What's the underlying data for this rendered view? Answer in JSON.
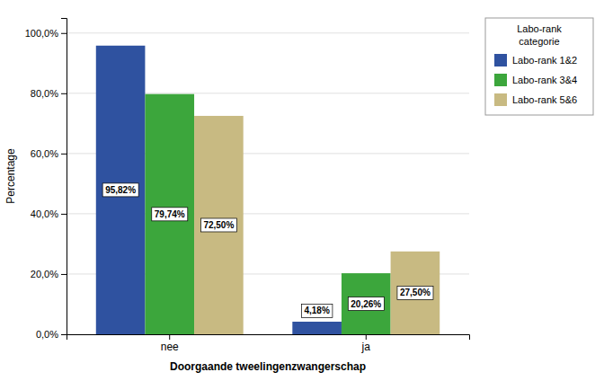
{
  "chart_data": {
    "type": "bar",
    "categories": [
      "nee",
      "ja"
    ],
    "series": [
      {
        "name": "Labo-rank 1&2",
        "color": "#2F52A0",
        "values": [
          95.82,
          4.18
        ],
        "value_labels": [
          "95,82%",
          "4,18%"
        ]
      },
      {
        "name": "Labo-rank 3&4",
        "color": "#3CA63C",
        "values": [
          79.74,
          20.26
        ],
        "value_labels": [
          "79,74%",
          "20,26%"
        ]
      },
      {
        "name": "Labo-rank 5&6",
        "color": "#C8BA82",
        "values": [
          72.5,
          27.5
        ],
        "value_labels": [
          "72,50%",
          "27,50%"
        ]
      }
    ],
    "xlabel": "Doorgaande tweelingenzwangerschap",
    "ylabel": "Percentage",
    "legend_title": "Labo-rank\ncategorie",
    "ylim": [
      0,
      105
    ],
    "yticks": [
      {
        "value": 0,
        "label": "0,0%"
      },
      {
        "value": 20,
        "label": "20,0%"
      },
      {
        "value": 40,
        "label": "40,0%"
      },
      {
        "value": 60,
        "label": "60,0%"
      },
      {
        "value": 80,
        "label": "80,0%"
      },
      {
        "value": 100,
        "label": "100,0%"
      }
    ],
    "grid": true,
    "legend": "right",
    "data_labels": true
  }
}
